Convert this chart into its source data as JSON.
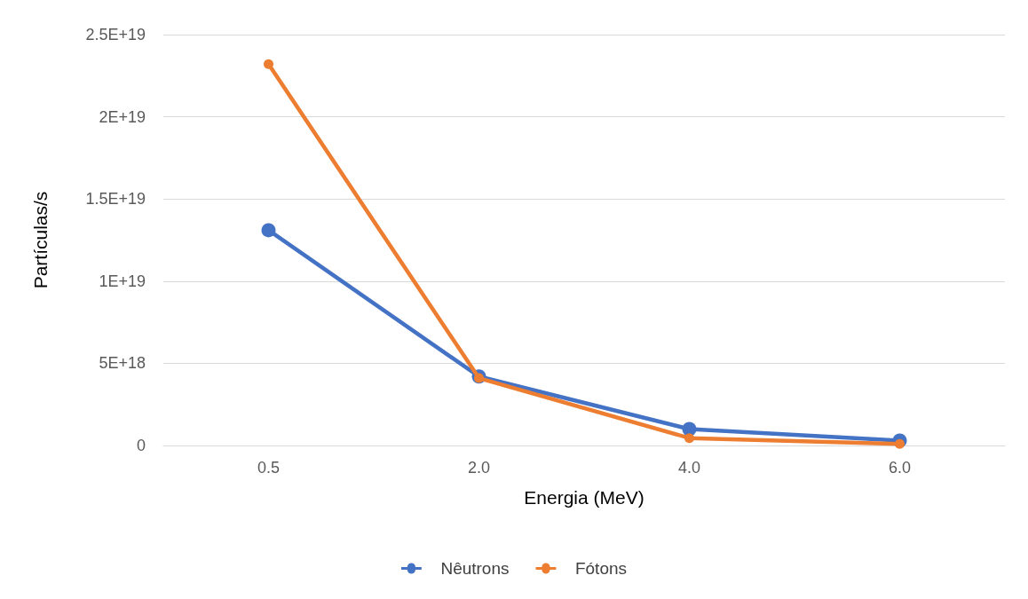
{
  "chart_data": {
    "type": "line",
    "xlabel": "Energia (MeV)",
    "ylabel": "Partículas/s",
    "categories": [
      "0.5",
      "2.0",
      "4.0",
      "6.0"
    ],
    "series": [
      {
        "name": "Nêutrons",
        "color": "#4472c4",
        "values": [
          1.31e+19,
          4.2e+18,
          1e+18,
          3e+17
        ]
      },
      {
        "name": "Fótons",
        "color": "#ed7d31",
        "values": [
          2.32e+19,
          4.1e+18,
          4.5e+17,
          1e+17
        ]
      }
    ],
    "ylim": [
      0,
      2.5e+19
    ],
    "yticks": [
      {
        "value": 0,
        "label": "0"
      },
      {
        "value": 5e+18,
        "label": "5E+18"
      },
      {
        "value": 1e+19,
        "label": "1E+19"
      },
      {
        "value": 1.5e+19,
        "label": "1.5E+19"
      },
      {
        "value": 2e+19,
        "label": "2E+19"
      },
      {
        "value": 2.5e+19,
        "label": "2.5E+19"
      }
    ],
    "grid": "y",
    "legend": "bottom",
    "marker": "circle",
    "line_style": "solid"
  }
}
